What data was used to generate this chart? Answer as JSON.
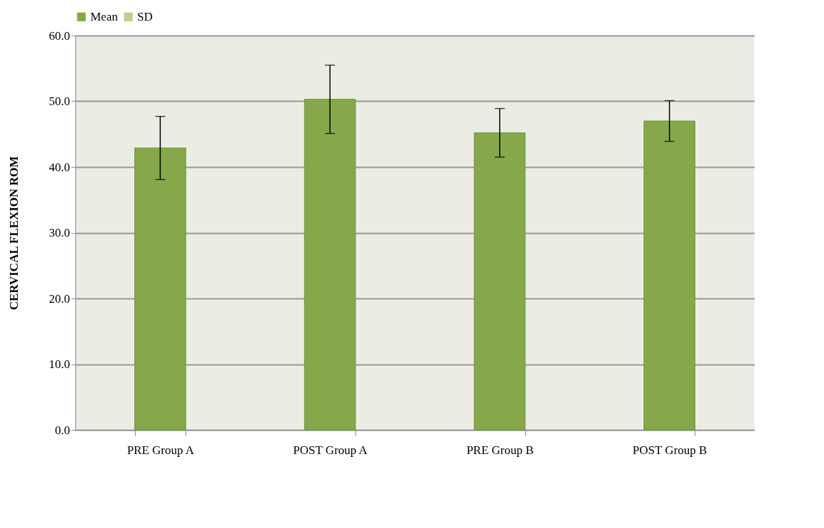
{
  "chart_data": {
    "type": "bar",
    "ylabel": "CERVICAL  FLEXION ROM",
    "categories": [
      "PRE Group A",
      "POST Group A",
      "PRE Group B",
      "POST Group B"
    ],
    "series": [
      {
        "name": "Mean",
        "color": "#86a84a",
        "values": [
          42.9,
          50.3,
          45.2,
          47.0
        ],
        "errors": [
          4.8,
          5.2,
          3.7,
          3.1
        ]
      },
      {
        "name": "SD",
        "color": "#b9cf8f",
        "values": [
          null,
          null,
          null,
          null
        ]
      }
    ],
    "ylim": [
      0,
      60
    ],
    "yticks": [
      {
        "value": 0,
        "label": "0.0"
      },
      {
        "value": 10,
        "label": "10.0"
      },
      {
        "value": 20,
        "label": "20.0"
      },
      {
        "value": 30,
        "label": "30.0"
      },
      {
        "value": 40,
        "label": "40.0"
      },
      {
        "value": 50,
        "label": "50.0"
      },
      {
        "value": 60,
        "label": "60.0"
      }
    ],
    "grid": "y",
    "legend": "top"
  }
}
